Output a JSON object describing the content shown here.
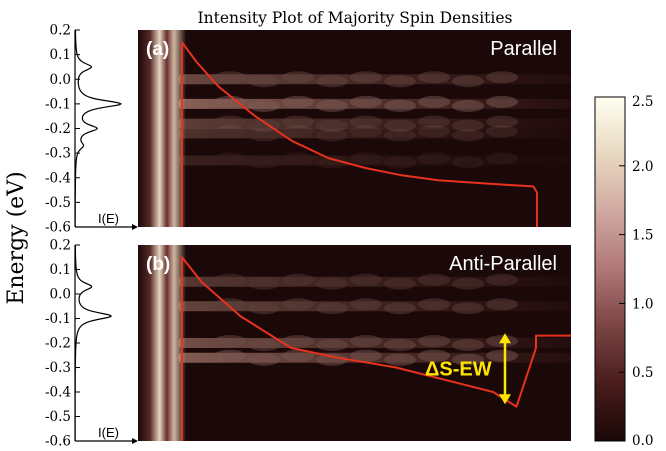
{
  "chart_data": {
    "type": "heatmap",
    "title": "Intensity Plot of Majority Spin Densities",
    "ylabel": "Energy (eV)",
    "ylim": [
      -0.6,
      0.2
    ],
    "yticks": [
      "0.2",
      "0.1",
      "0.0",
      "-0.1",
      "-0.2",
      "-0.3",
      "-0.4",
      "-0.5",
      "-0.6"
    ],
    "profile_label": "I(E)",
    "panels": [
      {
        "id": "a",
        "label": "(a)",
        "config": "Parallel",
        "dos_peaks": [
          {
            "energy": 0.05,
            "height": 0.35
          },
          {
            "energy": -0.1,
            "height": 1.0
          },
          {
            "energy": -0.2,
            "height": 0.45
          },
          {
            "energy": -0.27,
            "height": 0.15
          }
        ],
        "bands": [
          {
            "energy": 0.0,
            "intensity": 0.55
          },
          {
            "energy": -0.1,
            "intensity": 0.75
          },
          {
            "energy": -0.18,
            "intensity": 0.45
          },
          {
            "energy": -0.22,
            "intensity": 0.35
          },
          {
            "energy": -0.33,
            "intensity": 0.2
          }
        ],
        "curve": [
          [
            0.0,
            -0.6
          ],
          [
            0.0,
            0.15
          ],
          [
            0.04,
            0.07
          ],
          [
            0.1,
            -0.03
          ],
          [
            0.2,
            -0.15
          ],
          [
            0.3,
            -0.25
          ],
          [
            0.4,
            -0.32
          ],
          [
            0.5,
            -0.36
          ],
          [
            0.6,
            -0.39
          ],
          [
            0.7,
            -0.41
          ],
          [
            0.8,
            -0.42
          ],
          [
            0.9,
            -0.43
          ],
          [
            0.96,
            -0.435
          ],
          [
            0.97,
            -0.46
          ],
          [
            0.97,
            -0.6
          ]
        ]
      },
      {
        "id": "b",
        "label": "(b)",
        "config": "Anti-Parallel",
        "annotation": "ΔS-EW",
        "dos_peaks": [
          {
            "energy": 0.03,
            "height": 0.4
          },
          {
            "energy": -0.09,
            "height": 0.9
          }
        ],
        "bands": [
          {
            "energy": 0.05,
            "intensity": 0.4
          },
          {
            "energy": -0.05,
            "intensity": 0.5
          },
          {
            "energy": -0.2,
            "intensity": 0.6
          },
          {
            "energy": -0.26,
            "intensity": 0.7
          }
        ],
        "curve": [
          [
            0.0,
            -0.6
          ],
          [
            0.0,
            0.15
          ],
          [
            0.05,
            0.05
          ],
          [
            0.15,
            -0.09
          ],
          [
            0.28,
            -0.22
          ],
          [
            0.4,
            -0.26
          ],
          [
            0.55,
            -0.3
          ],
          [
            0.7,
            -0.36
          ],
          [
            0.8,
            -0.4
          ],
          [
            0.86,
            -0.46
          ],
          [
            0.91,
            -0.22
          ],
          [
            0.91,
            -0.17
          ],
          [
            1.0,
            -0.17
          ]
        ]
      }
    ],
    "colorbar": {
      "ticks": [
        "2.5",
        "2.0",
        "1.5",
        "1.0",
        "0.5",
        "0.0"
      ],
      "range": [
        0.0,
        2.5
      ],
      "colors": [
        "#1a0707",
        "#4a1c1c",
        "#7a4444",
        "#b07878",
        "#d0a8a0",
        "#e8d8c0",
        "#fffff0"
      ]
    },
    "colors": {
      "curve": "#e8321e",
      "arrow": "#ffe600",
      "background": "#1b0808",
      "text_on_plot": "#ffffff"
    }
  }
}
